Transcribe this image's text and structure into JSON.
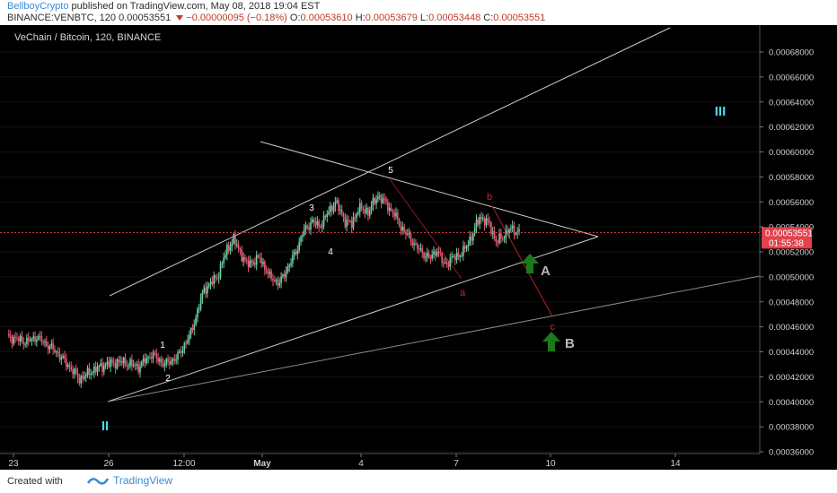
{
  "header": {
    "author": "BellboyCrypto",
    "published": "published on TradingView.com, May 08, 2018 19:04 EST",
    "symbol": "BINANCE:VENBTC, 120",
    "last": "0.00053551",
    "change": "−0.00000095 (−0.18%)",
    "o_label": "O:",
    "o": "0.00053610",
    "h_label": "H:",
    "h": "0.00053679",
    "l_label": "L:",
    "l": "0.00053448",
    "c_label": "C:",
    "c": "0.00053551"
  },
  "footer": {
    "created": "Created with",
    "brand": "TradingView"
  },
  "colors": {
    "up": "#6fd0a4",
    "down": "#e85a76",
    "waveLabel": "#ffffff",
    "bLabel": "#d0232b",
    "cyan": "#4ad8f0",
    "arrow": "#1a7a1a",
    "priceTag": "#e0424e"
  },
  "chart_data": {
    "type": "candlestick",
    "title": "VeChain / Bitcoin, 120, BINANCE",
    "ylim": [
      0.00035,
      0.0007
    ],
    "yticks": [
      "0.00068000",
      "0.00066000",
      "0.00064000",
      "0.00062000",
      "0.00060000",
      "0.00058000",
      "0.00056000",
      "0.00054000",
      "0.00052000",
      "0.00050000",
      "0.00048000",
      "0.00046000",
      "0.00044000",
      "0.00042000",
      "0.00040000",
      "0.00038000",
      "0.00036000"
    ],
    "xticks": [
      "23",
      "26",
      "12:00",
      "May",
      "4",
      "7",
      "10",
      "14"
    ],
    "last_price": 0.00053551,
    "last_price_label": "0.00053551",
    "countdown": "01:55:38",
    "closes_anchor": [
      [
        0,
        0.000452
      ],
      [
        6,
        0.00045
      ],
      [
        12,
        0.000448
      ],
      [
        18,
        0.000452
      ],
      [
        24,
        0.000446
      ],
      [
        30,
        0.00044
      ],
      [
        38,
        0.000428
      ],
      [
        44,
        0.000418
      ],
      [
        52,
        0.000425
      ],
      [
        60,
        0.00043
      ],
      [
        70,
        0.000432
      ],
      [
        80,
        0.000428
      ],
      [
        88,
        0.000438
      ],
      [
        96,
        0.00043
      ],
      [
        104,
        0.000436
      ],
      [
        112,
        0.000455
      ],
      [
        120,
        0.00049
      ],
      [
        128,
        0.0005
      ],
      [
        134,
        0.000522
      ],
      [
        138,
        0.00053
      ],
      [
        146,
        0.00051
      ],
      [
        154,
        0.000515
      ],
      [
        160,
        0.0005
      ],
      [
        166,
        0.000495
      ],
      [
        172,
        0.00051
      ],
      [
        176,
        0.00052
      ],
      [
        180,
        0.000535
      ],
      [
        186,
        0.000545
      ],
      [
        190,
        0.00054
      ],
      [
        196,
        0.000552
      ],
      [
        200,
        0.00056
      ],
      [
        206,
        0.000545
      ],
      [
        210,
        0.000542
      ],
      [
        214,
        0.000555
      ],
      [
        220,
        0.000552
      ],
      [
        226,
        0.000565
      ],
      [
        230,
        0.00056
      ],
      [
        236,
        0.00055
      ],
      [
        240,
        0.00054
      ],
      [
        246,
        0.00053
      ],
      [
        252,
        0.00052
      ],
      [
        258,
        0.000515
      ],
      [
        262,
        0.000522
      ],
      [
        266,
        0.00051
      ],
      [
        272,
        0.000515
      ],
      [
        278,
        0.00052
      ],
      [
        284,
        0.000535
      ],
      [
        288,
        0.000548
      ],
      [
        294,
        0.000542
      ],
      [
        298,
        0.000528
      ],
      [
        302,
        0.000532
      ],
      [
        306,
        0.000538
      ],
      [
        312,
        0.000536
      ]
    ],
    "annotations": [
      {
        "text": "1",
        "x": 0.26,
        "y": 0.000449,
        "color": "white"
      },
      {
        "text": "2",
        "x": 0.28,
        "y": 0.000423,
        "color": "white"
      },
      {
        "text": "3",
        "x": 0.545,
        "y": 0.000562,
        "color": "white"
      },
      {
        "text": "4",
        "x": 0.575,
        "y": 0.000524,
        "color": "white"
      },
      {
        "text": "5",
        "x": 0.68,
        "y": 0.000587,
        "color": "white"
      },
      {
        "text": "a",
        "x": 0.795,
        "y": 0.000491,
        "color": "red"
      },
      {
        "text": "b",
        "x": 0.845,
        "y": 0.000569,
        "color": "red"
      },
      {
        "text": "c",
        "x": 0.952,
        "y": 0.000468,
        "color": "red"
      },
      {
        "text": "A",
        "x": 0.0,
        "y": 0.0,
        "color": "grey"
      },
      {
        "text": "B",
        "x": 0.0,
        "y": 0.0,
        "color": "grey"
      },
      {
        "text": "II",
        "x": 0.0,
        "y": 0.0,
        "color": "cyan"
      },
      {
        "text": "III",
        "x": 0.0,
        "y": 0.0,
        "color": "cyan"
      }
    ]
  }
}
